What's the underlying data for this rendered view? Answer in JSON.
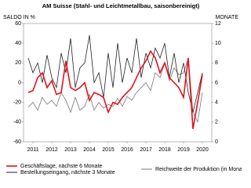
{
  "chart_data": {
    "type": "line",
    "title": "AM Suisse (Stahl- und Leichtmetallbau, saisonbereinigt)",
    "y_label": "SALDO IN %",
    "y2_label": "MONATE",
    "x": [
      2011.25,
      2011.5,
      2011.75,
      2012.0,
      2012.25,
      2012.5,
      2012.75,
      2013.0,
      2013.25,
      2013.5,
      2013.75,
      2014.0,
      2014.25,
      2014.5,
      2014.75,
      2015.0,
      2015.25,
      2015.5,
      2015.75,
      2016.0,
      2016.25,
      2016.5,
      2016.75,
      2017.0,
      2017.25,
      2017.5,
      2017.75,
      2018.0,
      2018.25,
      2018.5,
      2018.75,
      2019.0,
      2019.25,
      2019.5,
      2019.75,
      2020.0,
      2020.25,
      2020.5
    ],
    "series": [
      {
        "name": "Geschäftslage, nächste 6 Monate",
        "color": "#e0141c",
        "values": [
          -10,
          -8,
          5,
          10,
          -5,
          2,
          -12,
          -10,
          22,
          -5,
          -8,
          -5,
          0,
          -18,
          -10,
          -12,
          -15,
          -30,
          -20,
          -22,
          -15,
          -10,
          -5,
          5,
          15,
          22,
          32,
          25,
          10,
          20,
          5,
          0,
          -5,
          -15,
          25,
          -47,
          -20,
          8
        ]
      },
      {
        "name": "Bestellungseingang, nächste 3 Monate",
        "color": "#222222",
        "values": [
          25,
          10,
          20,
          0,
          28,
          5,
          -5,
          30,
          10,
          45,
          -5,
          15,
          20,
          48,
          0,
          10,
          -15,
          30,
          -5,
          40,
          0,
          25,
          10,
          45,
          5,
          30,
          15,
          35,
          25,
          40,
          5,
          30,
          0,
          20,
          -10,
          -30,
          -10,
          10
        ]
      },
      {
        "name": "Reichweite der Produktion (in Monaten)",
        "color": "#777777",
        "axis": "y2",
        "values": [
          3.5,
          4,
          3.2,
          4.5,
          3.8,
          4.2,
          3.6,
          5,
          4.2,
          3,
          4.5,
          3.2,
          3.6,
          4.8,
          3.2,
          4,
          3.4,
          3.8,
          3.6,
          4.4,
          3.6,
          4.6,
          4.2,
          5,
          5.5,
          6,
          5.2,
          7,
          6.5,
          8,
          6.2,
          7.5,
          6.8,
          7,
          8.5,
          3,
          2,
          5
        ]
      }
    ],
    "xlim": [
      2011,
      2021
    ],
    "xticks": [
      {
        "value": 2011.5,
        "label": "2011"
      },
      {
        "value": 2012.5,
        "label": "2012"
      },
      {
        "value": 2013.5,
        "label": "2013"
      },
      {
        "value": 2014.5,
        "label": "2014"
      },
      {
        "value": 2015.5,
        "label": "2015"
      },
      {
        "value": 2016.5,
        "label": "2016"
      },
      {
        "value": 2017.5,
        "label": "2017"
      },
      {
        "value": 2018.5,
        "label": "2018"
      },
      {
        "value": 2019.5,
        "label": "2019"
      },
      {
        "value": 2020.5,
        "label": "2020"
      }
    ],
    "ylim": [
      -60,
      60
    ],
    "yticks": [
      -60,
      -40,
      -20,
      0,
      20,
      40,
      60
    ],
    "y2lim": [
      0,
      12
    ],
    "y2ticks": [
      0,
      2,
      4,
      6,
      8,
      10,
      12
    ]
  }
}
